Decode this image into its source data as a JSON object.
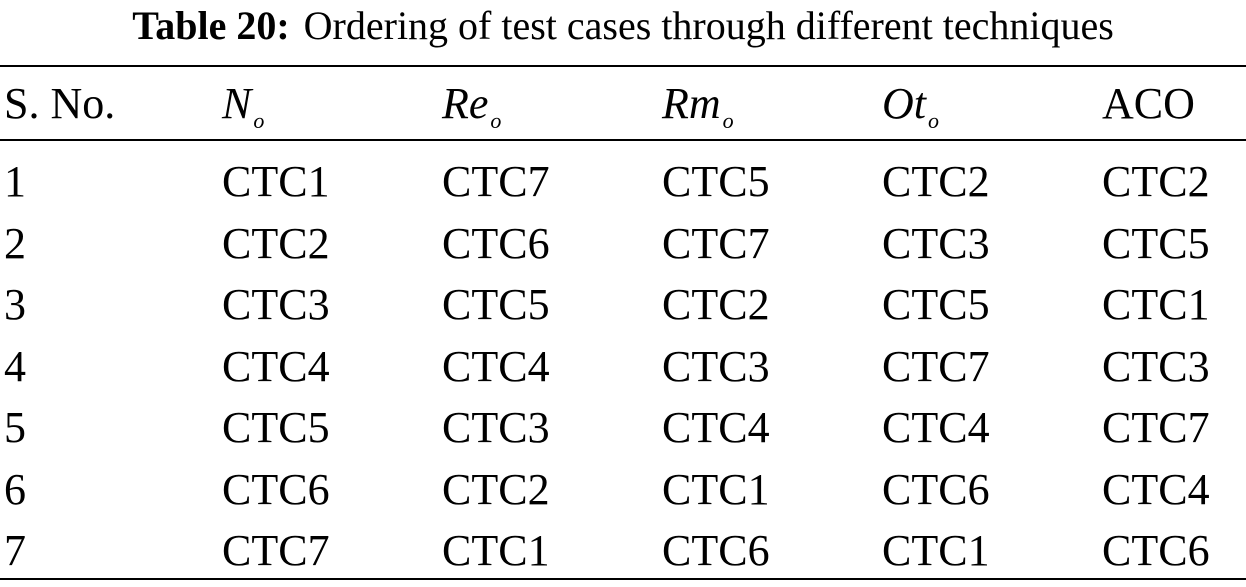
{
  "caption": {
    "label": "Table 20:",
    "text": "Ordering of test cases through different techniques"
  },
  "table": {
    "headers": [
      {
        "main": "S. No.",
        "sub": ""
      },
      {
        "main": "N",
        "sub": "o"
      },
      {
        "main": "Re",
        "sub": "o"
      },
      {
        "main": "Rm",
        "sub": "o"
      },
      {
        "main": "Ot",
        "sub": "o"
      },
      {
        "main": "ACO",
        "sub": ""
      }
    ],
    "rows": [
      [
        "1",
        "CTC1",
        "CTC7",
        "CTC5",
        "CTC2",
        "CTC2"
      ],
      [
        "2",
        "CTC2",
        "CTC6",
        "CTC7",
        "CTC3",
        "CTC5"
      ],
      [
        "3",
        "CTC3",
        "CTC5",
        "CTC2",
        "CTC5",
        "CTC1"
      ],
      [
        "4",
        "CTC4",
        "CTC4",
        "CTC3",
        "CTC7",
        "CTC3"
      ],
      [
        "5",
        "CTC5",
        "CTC3",
        "CTC4",
        "CTC4",
        "CTC7"
      ],
      [
        "6",
        "CTC6",
        "CTC2",
        "CTC1",
        "CTC6",
        "CTC4"
      ],
      [
        "7",
        "CTC7",
        "CTC1",
        "CTC6",
        "CTC1",
        "CTC6"
      ]
    ]
  }
}
